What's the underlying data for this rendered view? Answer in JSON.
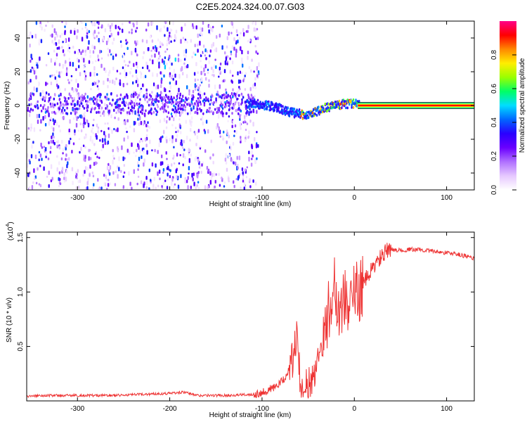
{
  "title": "C2E5.2024.324.00.07.G03",
  "chart_data": [
    {
      "type": "heatmap",
      "name": "spectrogram",
      "xlabel": "Height of straight line (km)",
      "ylabel": "Frequency (Hz)",
      "xlim": [
        -355,
        130
      ],
      "ylim": [
        -50,
        50
      ],
      "x_ticks": [
        -300,
        -200,
        -100,
        0,
        100
      ],
      "x_tick_labels": [
        "-300",
        "-200",
        "-100",
        "0",
        "100"
      ],
      "y_ticks": [
        40,
        20,
        0,
        -20,
        -40
      ],
      "y_tick_labels": [
        "40",
        "20",
        "0",
        "-20",
        "-40"
      ],
      "noise_region_x": [
        -355,
        -110
      ],
      "signal_track": {
        "x": [
          -355,
          -300,
          -250,
          -200,
          -150,
          -110,
          -95,
          -80,
          -70,
          -60,
          -50,
          -40,
          -30,
          -20,
          -10,
          0,
          5,
          130
        ],
        "freq_hz": [
          1,
          1,
          1,
          1,
          1,
          1,
          0,
          -2,
          -4,
          -5,
          -6,
          -3,
          -1,
          0,
          1,
          1,
          0,
          0
        ]
      },
      "colorbar": {
        "label": "Normalized spectral amplitude",
        "range": [
          0,
          1
        ],
        "ticks": [
          0.0,
          0.2,
          0.4,
          0.6,
          0.8
        ],
        "tick_labels": [
          "0.0",
          "0.2",
          "0.4",
          "0.6",
          "0.8"
        ],
        "colors": [
          "#ffffff",
          "#e6c8ff",
          "#b070ff",
          "#6a00ff",
          "#2a00ff",
          "#0066ff",
          "#00ddff",
          "#00ff66",
          "#99ff00",
          "#ffee00",
          "#ff8800",
          "#ff0000",
          "#ff0088"
        ]
      }
    },
    {
      "type": "line",
      "name": "snr",
      "xlabel": "Height of straight line (km)",
      "ylabel": "SNR (10 * v/v)",
      "y_scale_label": "(x10",
      "y_scale_exp": "4",
      "y_scale_close": ")",
      "xlim": [
        -355,
        130
      ],
      "ylim": [
        0,
        1.55
      ],
      "x_ticks": [
        -300,
        -200,
        -100,
        0,
        100
      ],
      "x_tick_labels": [
        "-300",
        "-200",
        "-100",
        "0",
        "100"
      ],
      "y_ticks": [
        0.5,
        1.0,
        1.5
      ],
      "y_tick_labels": [
        "0.5",
        "1.0",
        "1.5"
      ],
      "color": "#ee3333",
      "series": [
        {
          "name": "SNR",
          "x": [
            -355,
            -340,
            -300,
            -260,
            -230,
            -200,
            -185,
            -170,
            -140,
            -110,
            -100,
            -90,
            -80,
            -75,
            -70,
            -65,
            -62,
            -60,
            -58,
            -55,
            -50,
            -45,
            -40,
            -35,
            -30,
            -25,
            -22,
            -20,
            -18,
            -15,
            -10,
            -5,
            0,
            5,
            10,
            15,
            20,
            25,
            30,
            35,
            40,
            45,
            50,
            60,
            70,
            80,
            90,
            100,
            110,
            120,
            130
          ],
          "y": [
            0.04,
            0.05,
            0.05,
            0.05,
            0.06,
            0.07,
            0.08,
            0.05,
            0.05,
            0.06,
            0.08,
            0.11,
            0.16,
            0.22,
            0.3,
            0.45,
            0.62,
            0.3,
            0.18,
            0.14,
            0.12,
            0.2,
            0.4,
            0.55,
            0.75,
            0.95,
            1.12,
            1.0,
            0.85,
            0.9,
            0.92,
            0.92,
            0.97,
            1.02,
            1.08,
            1.15,
            1.22,
            1.28,
            1.33,
            1.37,
            1.39,
            1.39,
            1.38,
            1.39,
            1.39,
            1.38,
            1.37,
            1.36,
            1.35,
            1.33,
            1.31
          ]
        }
      ]
    }
  ]
}
